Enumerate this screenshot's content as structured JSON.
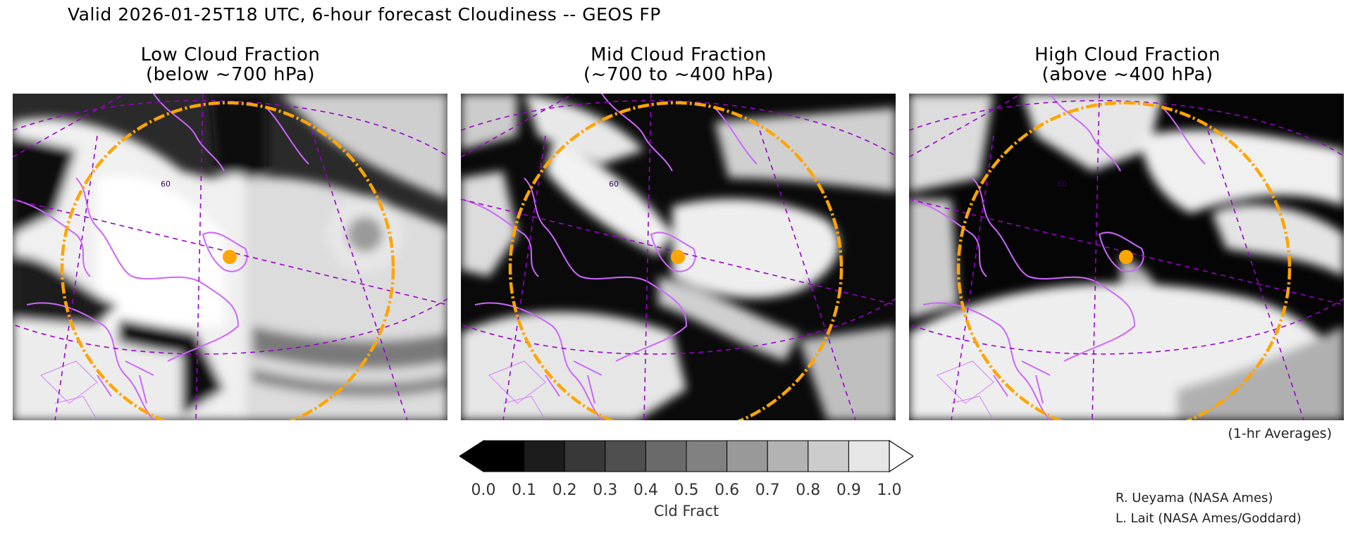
{
  "header": {
    "title": "Valid 2026-01-25T18 UTC, 6-hour forecast Cloudiness -- GEOS FP"
  },
  "panels": [
    {
      "title": "Low Cloud Fraction",
      "subtitle": "(below ~700 hPa)",
      "lat_label": "60"
    },
    {
      "title": "Mid Cloud Fraction",
      "subtitle": "(~700 to ~400 hPa)",
      "lat_label": "60"
    },
    {
      "title": "High Cloud Fraction",
      "subtitle": "(above ~400 hPa)",
      "lat_label": "60"
    }
  ],
  "colorbar": {
    "ticks": [
      "0.0",
      "0.1",
      "0.2",
      "0.3",
      "0.4",
      "0.5",
      "0.6",
      "0.7",
      "0.8",
      "0.9",
      "1.0"
    ],
    "label": "Cld Fract",
    "colors": [
      "#000000",
      "#1c1c1c",
      "#383838",
      "#4f4f4f",
      "#6a6a6a",
      "#818181",
      "#999999",
      "#b3b3b3",
      "#cccccc",
      "#e6e6e6"
    ]
  },
  "notes": {
    "averaging": "(1-hr Averages)",
    "credit1": "R. Ueyama (NASA Ames)",
    "credit2": "L. Lait (NASA Ames/Goddard)"
  },
  "colors": {
    "coastline": "#cc66ff",
    "range_ring": "#ffa500",
    "grid": "#9900cc"
  }
}
